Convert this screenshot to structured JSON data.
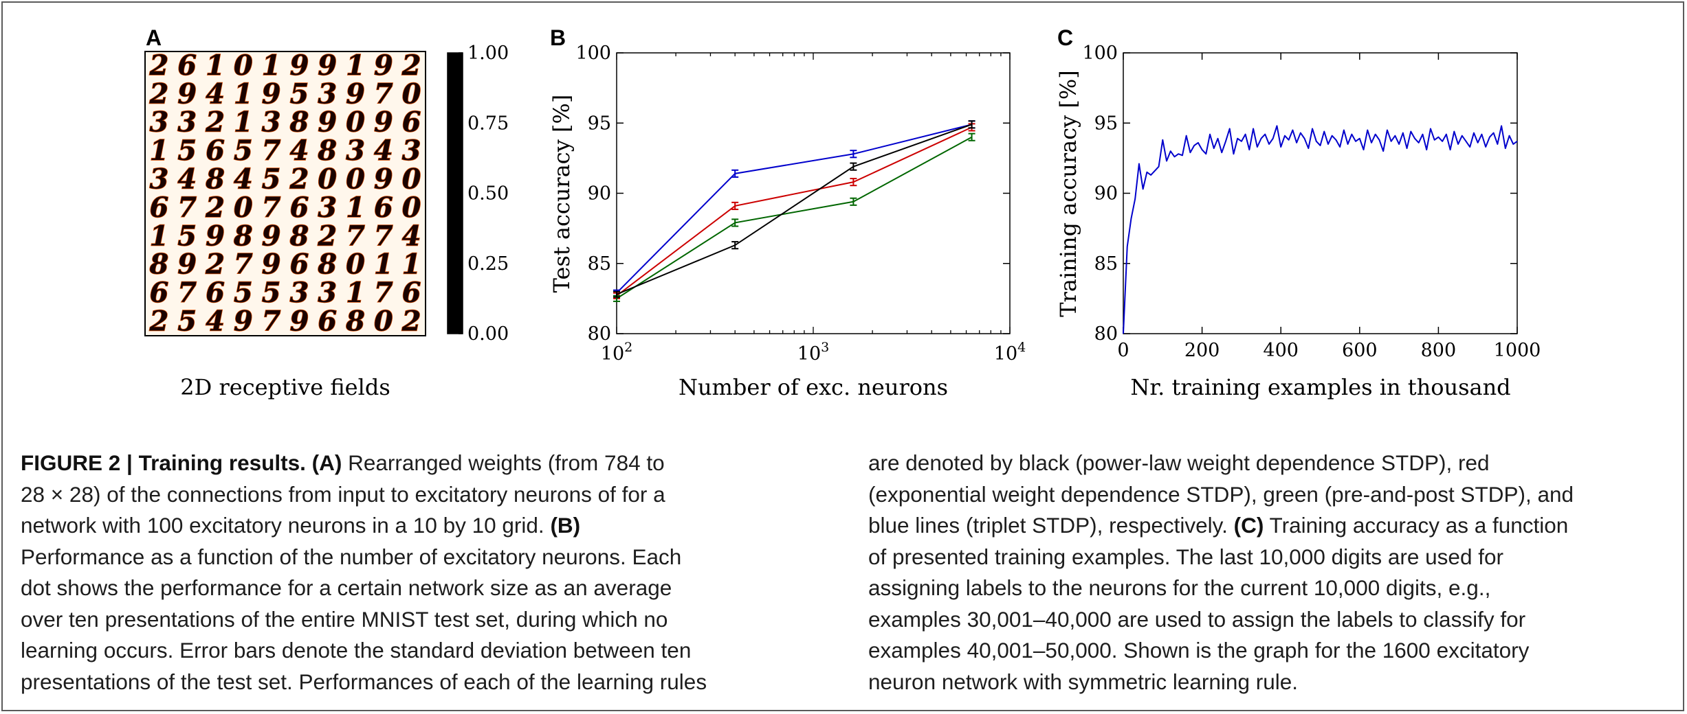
{
  "panel_a": {
    "letter": "A",
    "xlabel": "2D receptive fields",
    "digits": [
      "2610199192",
      "2941953970",
      "3321389096",
      "1565748343",
      "3484520090",
      "6720763160",
      "1598982774",
      "8927968011",
      "6765533176",
      "2549796802"
    ],
    "colorbar_ticks": [
      "1.00",
      "0.75",
      "0.50",
      "0.25",
      "0.00"
    ],
    "colormap": [
      "#000000",
      "#5a0000",
      "#b00000",
      "#e62200",
      "#ff6a00",
      "#ffae00",
      "#ffec20",
      "#ffffa0",
      "#ffffff"
    ]
  },
  "chart_data": [
    {
      "type": "line",
      "panel": "B",
      "xscale": "log",
      "xlim": [
        100,
        10000
      ],
      "ylim": [
        80,
        100
      ],
      "xlabel": "Number of exc. neurons",
      "ylabel": "Test accuracy [%]",
      "x_ticks": [
        {
          "base": "10",
          "exp": "2"
        },
        {
          "base": "10",
          "exp": "3"
        },
        {
          "base": "10",
          "exp": "4"
        }
      ],
      "y_ticks": [
        "80",
        "85",
        "90",
        "95",
        "100"
      ],
      "x": [
        100,
        400,
        1600,
        6400
      ],
      "series": [
        {
          "color": "#0000cc",
          "values": [
            82.9,
            91.4,
            92.8,
            94.9
          ],
          "errors": [
            0.1,
            0.15,
            0.15,
            0.15
          ]
        },
        {
          "color": "#cc0000",
          "values": [
            82.7,
            89.1,
            90.8,
            94.7
          ],
          "errors": [
            0.1,
            0.15,
            0.15,
            0.15
          ]
        },
        {
          "color": "#006600",
          "values": [
            82.5,
            87.9,
            89.4,
            94.0
          ],
          "errors": [
            0.1,
            0.15,
            0.15,
            0.15
          ]
        },
        {
          "color": "#000000",
          "values": [
            82.8,
            86.3,
            91.9,
            94.9
          ],
          "errors": [
            0.1,
            0.15,
            0.15,
            0.15
          ]
        }
      ]
    },
    {
      "type": "line",
      "panel": "C",
      "xlim": [
        0,
        1000
      ],
      "ylim": [
        80,
        100
      ],
      "xlabel": "Nr. training examples in thousand",
      "ylabel": "Training accuracy [%]",
      "x_ticks": [
        "0",
        "200",
        "400",
        "600",
        "800",
        "1000"
      ],
      "y_ticks": [
        "80",
        "85",
        "90",
        "95",
        "100"
      ],
      "series": [
        {
          "color": "#0000cc",
          "x": [
            0,
            10,
            20,
            30,
            40,
            50,
            60,
            70,
            80,
            90,
            100,
            110,
            120,
            130,
            140,
            150,
            160,
            170,
            180,
            190,
            200,
            210,
            220,
            230,
            240,
            250,
            260,
            270,
            280,
            290,
            300,
            310,
            320,
            330,
            340,
            350,
            360,
            370,
            380,
            390,
            400,
            410,
            420,
            430,
            440,
            450,
            460,
            470,
            480,
            490,
            500,
            510,
            520,
            530,
            540,
            550,
            560,
            570,
            580,
            590,
            600,
            610,
            620,
            630,
            640,
            650,
            660,
            670,
            680,
            690,
            700,
            710,
            720,
            730,
            740,
            750,
            760,
            770,
            780,
            790,
            800,
            810,
            820,
            830,
            840,
            850,
            860,
            870,
            880,
            890,
            900,
            910,
            920,
            930,
            940,
            950,
            960,
            970,
            980,
            990,
            1000
          ],
          "values": [
            80.0,
            86.2,
            88.2,
            89.6,
            92.1,
            90.3,
            91.5,
            91.3,
            91.6,
            91.9,
            93.8,
            92.3,
            93.0,
            92.6,
            92.8,
            92.7,
            94.1,
            92.9,
            93.4,
            93.6,
            93.1,
            92.8,
            94.2,
            93.2,
            93.9,
            92.9,
            93.7,
            94.6,
            92.8,
            93.9,
            93.7,
            94.2,
            93.1,
            94.6,
            93.3,
            93.9,
            94.2,
            93.5,
            93.9,
            94.8,
            93.3,
            94.1,
            93.8,
            94.5,
            93.6,
            94.3,
            93.9,
            93.2,
            94.6,
            93.7,
            93.4,
            94.4,
            93.5,
            94.1,
            93.8,
            93.3,
            94.5,
            93.5,
            94.2,
            93.7,
            93.9,
            93.1,
            94.5,
            93.6,
            94.2,
            93.8,
            93.0,
            94.5,
            93.7,
            94.1,
            93.5,
            94.3,
            93.2,
            94.4,
            93.9,
            93.6,
            94.2,
            93.1,
            94.6,
            93.8,
            94.0,
            93.7,
            94.2,
            93.1,
            94.4,
            93.5,
            94.1,
            93.7,
            93.3,
            94.3,
            93.6,
            94.2,
            93.3,
            94.0,
            94.3,
            93.5,
            94.8,
            93.2,
            94.1,
            93.5,
            93.7
          ]
        }
      ]
    }
  ],
  "panel_letters": {
    "b": "B",
    "c": "C"
  },
  "caption": {
    "left_lines": [
      [
        {
          "t": "FIGURE 2 | Training results. (A)",
          "b": true
        },
        {
          "t": " Rearranged weights (from 784 to",
          "b": false
        }
      ],
      [
        {
          "t": "28 × 28) of the connections from input to excitatory neurons of for a",
          "b": false
        }
      ],
      [
        {
          "t": "network with 100 excitatory neurons in a 10 by 10 grid. ",
          "b": false
        },
        {
          "t": "(B)",
          "b": true
        }
      ],
      [
        {
          "t": "Performance as a function of the number of excitatory neurons. Each",
          "b": false
        }
      ],
      [
        {
          "t": "dot shows the performance for a certain network size as an average",
          "b": false
        }
      ],
      [
        {
          "t": "over ten presentations of the entire MNIST test set, during which no",
          "b": false
        }
      ],
      [
        {
          "t": "learning occurs. Error bars denote the standard deviation between ten",
          "b": false
        }
      ],
      [
        {
          "t": "presentations of the test set. Performances of each of the learning rules",
          "b": false
        }
      ]
    ],
    "right_lines": [
      [
        {
          "t": "are denoted by black (power-law weight dependence STDP), red",
          "b": false
        }
      ],
      [
        {
          "t": "(exponential weight dependence STDP), green (pre-and-post STDP), and",
          "b": false
        }
      ],
      [
        {
          "t": "blue lines (triplet STDP), respectively. ",
          "b": false
        },
        {
          "t": "(C)",
          "b": true
        },
        {
          "t": " Training accuracy as a function",
          "b": false
        }
      ],
      [
        {
          "t": "of presented training examples. The last 10,000 digits are used for",
          "b": false
        }
      ],
      [
        {
          "t": "assigning labels to the neurons for the current 10,000 digits, e.g.,",
          "b": false
        }
      ],
      [
        {
          "t": "examples 30,001–40,000 are used to assign the labels to classify for",
          "b": false
        }
      ],
      [
        {
          "t": "examples 40,001–50,000. Shown is the graph for the 1600 excitatory",
          "b": false
        }
      ],
      [
        {
          "t": "neuron network with symmetric learning rule.",
          "b": false
        }
      ]
    ]
  }
}
